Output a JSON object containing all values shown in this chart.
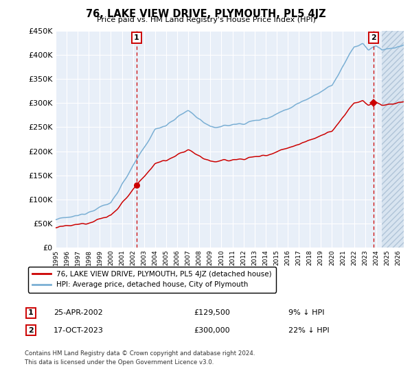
{
  "title": "76, LAKE VIEW DRIVE, PLYMOUTH, PL5 4JZ",
  "subtitle": "Price paid vs. HM Land Registry's House Price Index (HPI)",
  "red_label": "76, LAKE VIEW DRIVE, PLYMOUTH, PL5 4JZ (detached house)",
  "blue_label": "HPI: Average price, detached house, City of Plymouth",
  "annotation1_label": "1",
  "annotation1_date": "25-APR-2002",
  "annotation1_price": "£129,500",
  "annotation1_hpi": "9% ↓ HPI",
  "annotation2_label": "2",
  "annotation2_date": "17-OCT-2023",
  "annotation2_price": "£300,000",
  "annotation2_hpi": "22% ↓ HPI",
  "footer_line1": "Contains HM Land Registry data © Crown copyright and database right 2024.",
  "footer_line2": "This data is licensed under the Open Government Licence v3.0.",
  "ylim": [
    0,
    450000
  ],
  "yticks": [
    0,
    50000,
    100000,
    150000,
    200000,
    250000,
    300000,
    350000,
    400000,
    450000
  ],
  "xlim_start": 1995.0,
  "xlim_end": 2026.5,
  "plot_bg": "#E8EFF8",
  "hatch_region_start": 2024.5,
  "hatch_facecolor": "#D8E4F0",
  "hatch_edgecolor": "#B0C4D8",
  "red_color": "#CC0000",
  "blue_color": "#7AAFD4",
  "sale1_year": 2002.32,
  "sale1_price": 129500,
  "sale2_year": 2023.79,
  "sale2_price": 300000,
  "grid_color": "#FFFFFF",
  "axis_bg": "#FFFFFF"
}
